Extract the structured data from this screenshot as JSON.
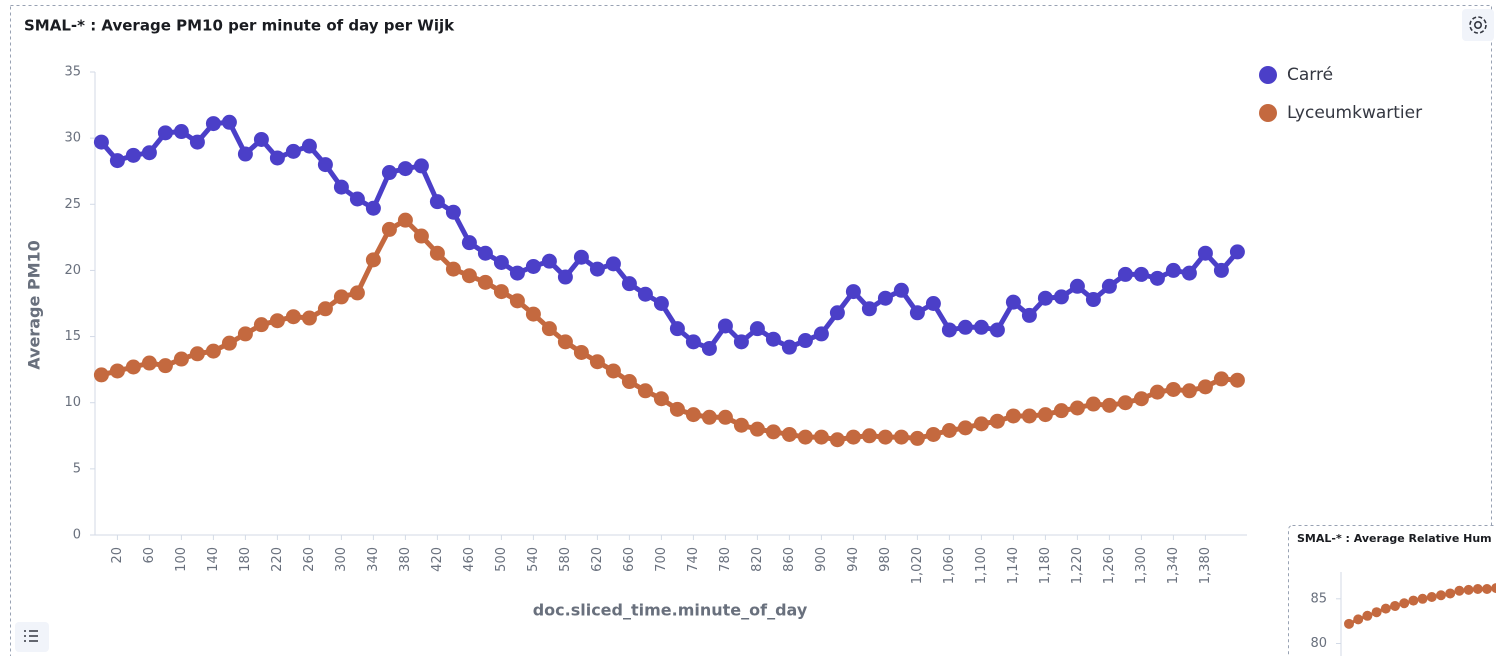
{
  "chart_data": [
    {
      "type": "line",
      "title": "SMAL-* : Average PM10 per minute of day per Wijk",
      "xlabel": "doc.sliced_time.minute_of_day",
      "ylabel": "Average PM10",
      "x": [
        0,
        20,
        40,
        60,
        80,
        100,
        120,
        140,
        160,
        180,
        200,
        220,
        240,
        260,
        280,
        300,
        320,
        340,
        360,
        380,
        400,
        420,
        440,
        460,
        480,
        500,
        520,
        540,
        560,
        580,
        600,
        620,
        640,
        660,
        680,
        700,
        720,
        740,
        760,
        780,
        800,
        820,
        840,
        860,
        880,
        900,
        920,
        940,
        960,
        980,
        1000,
        1020,
        1040,
        1060,
        1080,
        1100,
        1120,
        1140,
        1160,
        1180,
        1200,
        1220,
        1240,
        1260,
        1280,
        1300,
        1320,
        1340,
        1360,
        1380,
        1400,
        1420
      ],
      "series": [
        {
          "name": "Carré",
          "color": "#4b3fc8",
          "values": [
            29.7,
            28.3,
            28.7,
            28.9,
            30.4,
            30.5,
            29.7,
            31.1,
            31.2,
            28.8,
            29.9,
            28.5,
            29.0,
            29.4,
            28.0,
            26.3,
            25.4,
            24.7,
            27.4,
            27.7,
            27.9,
            25.2,
            24.4,
            22.1,
            21.3,
            20.6,
            19.8,
            20.3,
            20.7,
            19.5,
            21.0,
            20.1,
            20.5,
            19.0,
            18.2,
            17.5,
            15.6,
            14.6,
            14.1,
            15.8,
            14.6,
            15.6,
            14.8,
            14.2,
            14.7,
            15.2,
            16.8,
            18.4,
            17.1,
            17.9,
            18.5,
            16.8,
            17.5,
            15.5,
            15.7,
            15.7,
            15.5,
            17.6,
            16.6,
            17.9,
            18.0,
            18.8,
            17.8,
            18.8,
            19.7,
            19.7,
            19.4,
            20.0,
            19.8,
            21.3,
            20.0,
            21.4
          ]
        },
        {
          "name": "Lyceumkwartier",
          "color": "#c4693f",
          "values": [
            12.1,
            12.4,
            12.7,
            13.0,
            12.8,
            13.3,
            13.7,
            13.9,
            14.5,
            15.2,
            15.9,
            16.2,
            16.5,
            16.4,
            17.1,
            18.0,
            18.3,
            20.8,
            23.1,
            23.8,
            22.6,
            21.3,
            20.1,
            19.6,
            19.1,
            18.4,
            17.7,
            16.7,
            15.6,
            14.6,
            13.8,
            13.1,
            12.4,
            11.6,
            10.9,
            10.3,
            9.5,
            9.1,
            8.9,
            8.9,
            8.3,
            8.0,
            7.8,
            7.6,
            7.4,
            7.4,
            7.2,
            7.4,
            7.5,
            7.4,
            7.4,
            7.3,
            7.6,
            7.9,
            8.1,
            8.4,
            8.6,
            9.0,
            9.0,
            9.1,
            9.4,
            9.6,
            9.9,
            9.8,
            10.0,
            10.3,
            10.8,
            11.0,
            10.9,
            11.2,
            11.8,
            11.7
          ]
        }
      ],
      "xlim": [
        -8,
        1432
      ],
      "xticks": [
        20,
        60,
        100,
        140,
        180,
        220,
        260,
        300,
        340,
        380,
        420,
        460,
        500,
        540,
        580,
        620,
        660,
        700,
        740,
        780,
        820,
        860,
        900,
        940,
        980,
        {
          "value": 1020,
          "label": "1,020"
        },
        {
          "value": 1060,
          "label": "1,060"
        },
        {
          "value": 1100,
          "label": "1,100"
        },
        {
          "value": 1140,
          "label": "1,140"
        },
        {
          "value": 1180,
          "label": "1,180"
        },
        {
          "value": 1220,
          "label": "1,220"
        },
        {
          "value": 1260,
          "label": "1,260"
        },
        {
          "value": 1300,
          "label": "1,300"
        },
        {
          "value": 1340,
          "label": "1,340"
        },
        {
          "value": 1380,
          "label": "1,380"
        }
      ],
      "ylim": [
        0,
        35
      ],
      "yticks": [
        0,
        5,
        10,
        15,
        20,
        25,
        30,
        35
      ],
      "legend": "top-right"
    },
    {
      "type": "line",
      "title": "SMAL-* : Average Relative Hum",
      "series": [
        {
          "color": "#c4693f",
          "values": [
            82.2,
            82.7,
            83.1,
            83.5,
            83.9,
            84.2,
            84.5,
            84.8,
            85.0,
            85.2,
            85.4,
            85.6,
            85.9,
            86.0,
            86.1,
            86.1,
            86.2
          ]
        }
      ],
      "ylim": [
        78.6,
        88
      ],
      "yticks": [
        80,
        85
      ]
    }
  ]
}
